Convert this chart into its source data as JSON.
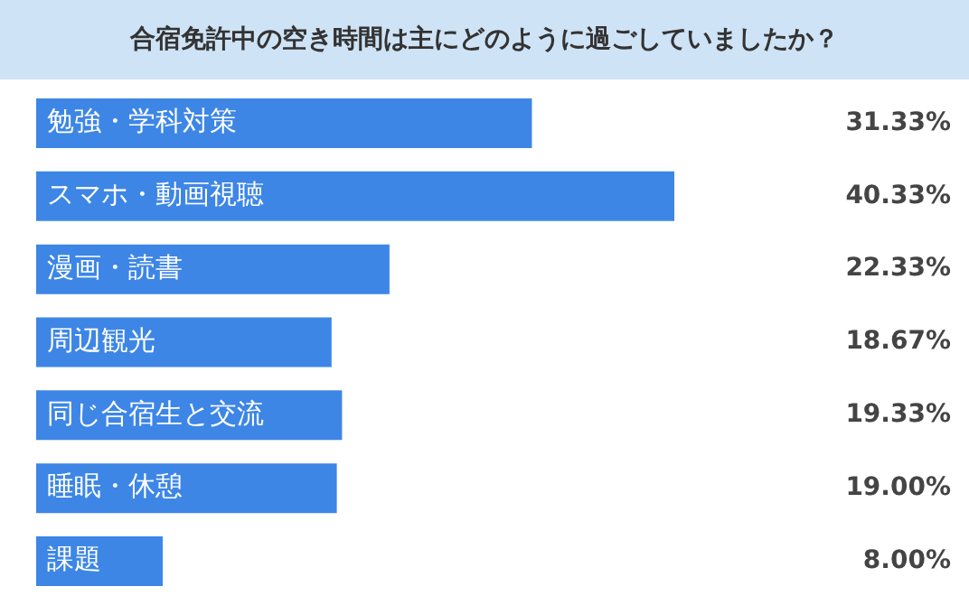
{
  "chart_data": {
    "type": "bar",
    "orientation": "horizontal",
    "title": "合宿免許中の空き時間は主にどのように過ごしていましたか？",
    "categories": [
      "勉強・学科対策",
      "スマホ・動画視聴",
      "漫画・読書",
      "周辺観光",
      "同じ合宿生と交流",
      "睡眠・休憩",
      "課題"
    ],
    "values": [
      31.33,
      40.33,
      22.33,
      18.67,
      19.33,
      19.0,
      8.0
    ],
    "value_labels": [
      "31.33%",
      "40.33%",
      "22.33%",
      "18.67%",
      "19.33%",
      "19.00%",
      "8.00%"
    ],
    "color": "#3d86e6",
    "tick_labels": false
  }
}
